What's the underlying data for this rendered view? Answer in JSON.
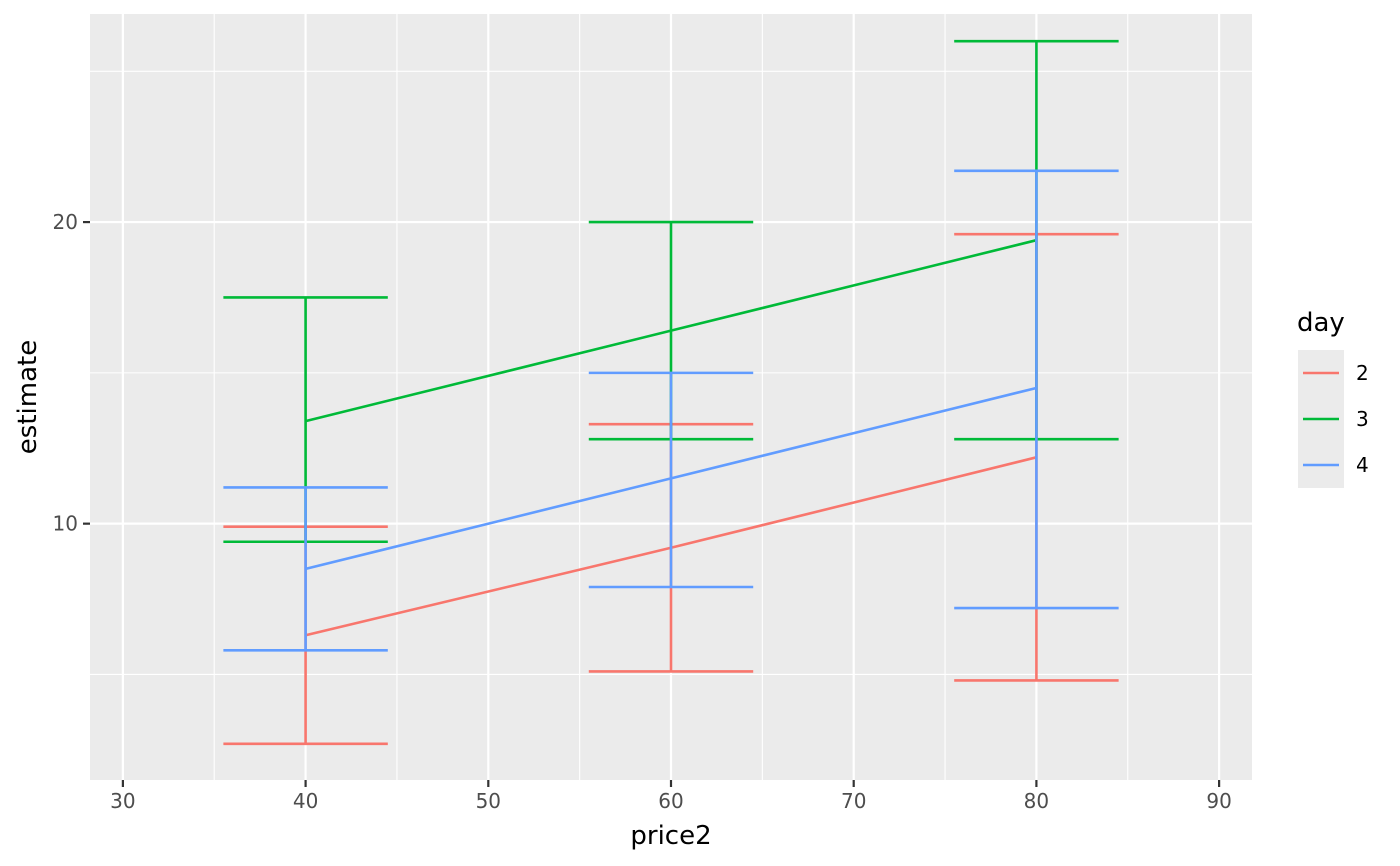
{
  "chart_data": {
    "type": "line",
    "xlabel": "price2",
    "ylabel": "estimate",
    "xlim": [
      28.2,
      91.8
    ],
    "ylim": [
      1.5,
      26.9
    ],
    "x_ticks": [
      {
        "value": 30,
        "label": "30"
      },
      {
        "value": 40,
        "label": "40"
      },
      {
        "value": 50,
        "label": "50"
      },
      {
        "value": 60,
        "label": "60"
      },
      {
        "value": 70,
        "label": "70"
      },
      {
        "value": 80,
        "label": "80"
      },
      {
        "value": 90,
        "label": "90"
      }
    ],
    "x_minor": [
      35,
      45,
      55,
      65,
      75,
      85
    ],
    "y_ticks": [
      {
        "value": 10,
        "label": "10"
      },
      {
        "value": 20,
        "label": "20"
      }
    ],
    "y_minor": [
      5,
      15,
      25
    ],
    "errorbar_width": 9,
    "grid": true,
    "legend": {
      "title": "day",
      "position": "right"
    },
    "x": [
      40,
      60,
      80
    ],
    "series": [
      {
        "name": "2",
        "color": "#F8766D",
        "estimate": [
          6.3,
          9.2,
          12.2
        ],
        "lower": [
          2.7,
          5.1,
          4.8
        ],
        "upper": [
          9.9,
          13.3,
          19.6
        ]
      },
      {
        "name": "3",
        "color": "#00BA38",
        "estimate": [
          13.4,
          16.4,
          19.4
        ],
        "lower": [
          9.4,
          12.8,
          12.8
        ],
        "upper": [
          17.5,
          20.0,
          26.0
        ]
      },
      {
        "name": "4",
        "color": "#619CFF",
        "estimate": [
          8.5,
          11.5,
          14.5
        ],
        "lower": [
          5.8,
          7.9,
          7.2
        ],
        "upper": [
          11.2,
          15.0,
          21.7
        ]
      }
    ]
  }
}
